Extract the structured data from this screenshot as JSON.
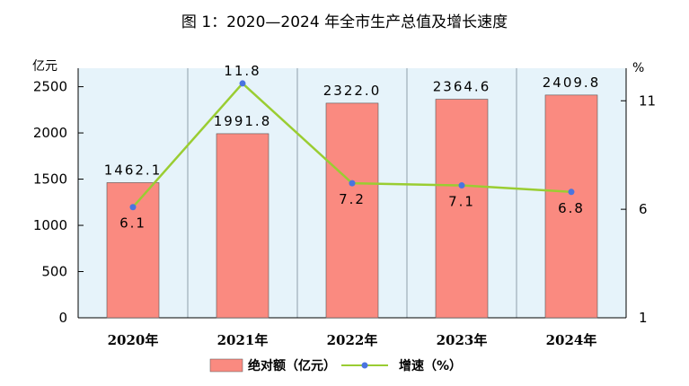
{
  "title": "图 1：2020—2024 年全市生产总值及增长速度",
  "chart_data": {
    "type": "bar+line",
    "categories": [
      "2020年",
      "2021年",
      "2022年",
      "2023年",
      "2024年"
    ],
    "series": [
      {
        "name": "绝对额（亿元）",
        "type": "bar",
        "axis": "left",
        "values": [
          1462.1,
          1991.8,
          2322.0,
          2364.6,
          2409.8
        ],
        "labels": [
          "1462.1",
          "1991.8",
          "2322.0",
          "2364.6",
          "2409.8"
        ],
        "color": "#fa8a80"
      },
      {
        "name": "增速（%）",
        "type": "line",
        "axis": "right",
        "values": [
          6.1,
          11.8,
          7.2,
          7.1,
          6.8
        ],
        "labels": [
          "6.1",
          "11.8",
          "7.2",
          "7.1",
          "6.8"
        ],
        "color": "#9acd32",
        "marker_color": "#4a74e0"
      }
    ],
    "y_left": {
      "unit": "亿元",
      "ticks": [
        "0",
        "500",
        "1000",
        "1500",
        "2000",
        "2500"
      ],
      "tick_values": [
        0,
        500,
        1000,
        1500,
        2000,
        2500
      ],
      "range": [
        0,
        2700
      ]
    },
    "y_right": {
      "unit": "%",
      "ticks": [
        "1",
        "6",
        "11"
      ],
      "tick_values": [
        1,
        6,
        11
      ],
      "range": [
        1,
        12.5
      ]
    },
    "plot_background": "#e6f3fa",
    "legend_position": "bottom"
  }
}
